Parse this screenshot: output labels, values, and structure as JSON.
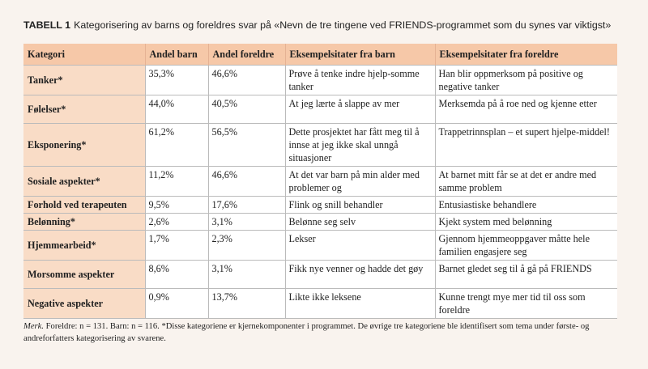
{
  "caption": {
    "label": "TABELL 1",
    "text": "Kategorisering av barns og foreldres svar på «Nevn de tre tingene ved FRIENDS-programmet som du synes var viktigst»"
  },
  "table": {
    "headers": [
      "Kategori",
      "Andel barn",
      "Andel foreldre",
      "Eksempelsitater fra barn",
      "Eksempelsitater fra foreldre"
    ],
    "rows": [
      [
        "Tanker*",
        "35,3%",
        "46,6%",
        "Prøve å tenke indre hjelp-somme tanker",
        "Han blir oppmerksom på positive og negative tanker"
      ],
      [
        "Følelser*",
        "44,0%",
        "40,5%",
        "At jeg lærte å slappe av mer",
        "Merksemda på å roe ned og kjenne etter"
      ],
      [
        "Eksponering*",
        "61,2%",
        "56,5%",
        "Dette prosjektet har fått meg til å innse at jeg ikke skal unngå situasjoner",
        "Trappetrinnsplan – et supert hjelpe-middel!"
      ],
      [
        "Sosiale aspekter*",
        "11,2%",
        "46,6%",
        "At det var barn på min alder med problemer og",
        "At barnet mitt får se at det er andre med samme problem"
      ],
      [
        "Forhold ved terapeuten",
        "9,5%",
        "17,6%",
        "Flink og snill behandler",
        "Entusiastiske behandlere"
      ],
      [
        "Belønning*",
        "2,6%",
        "3,1%",
        "Belønne seg selv",
        "Kjekt system med belønning"
      ],
      [
        "Hjemmearbeid*",
        "1,7%",
        "2,3%",
        "Lekser",
        "Gjennom hjemmeoppgaver måtte hele familien engasjere seg"
      ],
      [
        "Morsomme aspekter",
        "8,6%",
        "3,1%",
        "Fikk nye venner og hadde det gøy",
        "Barnet gledet seg til å gå på FRIENDS"
      ],
      [
        "Negative aspekter",
        "0,9%",
        "13,7%",
        "Likte ikke leksene",
        "Kunne trengt mye mer tid til oss som foreldre"
      ]
    ]
  },
  "note": {
    "label": "Merk.",
    "text": "Foreldre: n = 131. Barn: n = 116. *Disse kategoriene er kjernekomponenter i programmet. De øvrige tre kategoriene ble identifisert som tema under første- og andreforfatters kategorisering av svarene."
  }
}
